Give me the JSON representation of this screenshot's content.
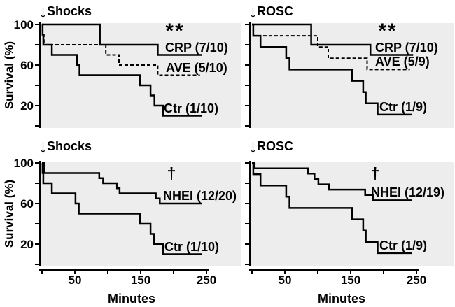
{
  "colors": {
    "curve": "#000000",
    "panel_bg": "#ededed",
    "text": "#000000",
    "page_bg": "#ffffff"
  },
  "arrow_icon": "↓",
  "y_axis": {
    "label": "Survival (%)",
    "tick_values": [
      100,
      80,
      60,
      40,
      20,
      0
    ],
    "labeled_ticks": [
      100,
      60,
      20
    ]
  },
  "x_axis": {
    "label": "Minutes",
    "tick_values": [
      0,
      50,
      100,
      150,
      200,
      250
    ],
    "labeled_ticks": [
      50,
      150,
      250
    ]
  },
  "chart_data": [
    {
      "position": "top-left",
      "type": "line",
      "step": true,
      "title": "Shocks",
      "significance": "**",
      "xlabel": "",
      "ylabel": "Survival (%)",
      "xlim": [
        0,
        250
      ],
      "ylim": [
        0,
        100
      ],
      "series": [
        {
          "name": "CRP",
          "label": "CRP (7/10)",
          "line_style": "solid",
          "points": [
            [
              0,
              100
            ],
            [
              88,
              100
            ],
            [
              88,
              80
            ],
            [
              176,
              80
            ],
            [
              176,
              70
            ],
            [
              243,
              70
            ]
          ]
        },
        {
          "name": "AVE",
          "label": "AVE (5/10)",
          "line_style": "dashed",
          "points": [
            [
              0,
              100
            ],
            [
              1,
              100
            ],
            [
              1,
              90
            ],
            [
              3,
              90
            ],
            [
              3,
              80
            ],
            [
              97,
              80
            ],
            [
              97,
              70
            ],
            [
              117,
              70
            ],
            [
              117,
              60
            ],
            [
              176,
              60
            ],
            [
              176,
              50
            ],
            [
              240,
              50
            ]
          ]
        },
        {
          "name": "Ctr",
          "label": "Ctr (1/10)",
          "line_style": "solid",
          "points": [
            [
              0,
              100
            ],
            [
              1,
              100
            ],
            [
              1,
              90
            ],
            [
              2,
              90
            ],
            [
              2,
              80
            ],
            [
              15,
              80
            ],
            [
              15,
              70
            ],
            [
              53,
              70
            ],
            [
              53,
              60
            ],
            [
              57,
              60
            ],
            [
              57,
              50
            ],
            [
              149,
              50
            ],
            [
              149,
              40
            ],
            [
              165,
              40
            ],
            [
              165,
              30
            ],
            [
              171,
              30
            ],
            [
              171,
              20
            ],
            [
              184,
              20
            ],
            [
              184,
              10
            ],
            [
              243,
              10
            ]
          ]
        }
      ]
    },
    {
      "position": "top-right",
      "type": "line",
      "step": true,
      "title": "ROSC",
      "significance": "**",
      "xlabel": "",
      "ylabel": "",
      "xlim": [
        0,
        250
      ],
      "ylim": [
        0,
        100
      ],
      "series": [
        {
          "name": "CRP",
          "label": "CRP (7/10)",
          "line_style": "solid",
          "points": [
            [
              0,
              100
            ],
            [
              90,
              100
            ],
            [
              90,
              80
            ],
            [
              180,
              80
            ],
            [
              180,
              70
            ],
            [
              245,
              70
            ]
          ]
        },
        {
          "name": "AVE",
          "label": "AVE (5/9)",
          "line_style": "dashed",
          "points": [
            [
              0,
              100
            ],
            [
              2,
              100
            ],
            [
              2,
              88.9
            ],
            [
              100,
              88.9
            ],
            [
              100,
              77.8
            ],
            [
              116,
              77.8
            ],
            [
              116,
              66.7
            ],
            [
              175,
              66.7
            ],
            [
              175,
              55.6
            ],
            [
              240,
              55.6
            ]
          ]
        },
        {
          "name": "Ctr",
          "label": "Ctr (1/9)",
          "line_style": "solid",
          "points": [
            [
              0,
              100
            ],
            [
              2,
              100
            ],
            [
              2,
              88.9
            ],
            [
              13,
              88.9
            ],
            [
              13,
              77.8
            ],
            [
              52,
              77.8
            ],
            [
              52,
              66.7
            ],
            [
              57,
              66.7
            ],
            [
              57,
              55.6
            ],
            [
              152,
              55.6
            ],
            [
              152,
              44.4
            ],
            [
              169,
              44.4
            ],
            [
              169,
              33.3
            ],
            [
              173,
              33.3
            ],
            [
              173,
              22.2
            ],
            [
              191,
              22.2
            ],
            [
              191,
              11.1
            ],
            [
              243,
              11.1
            ]
          ]
        }
      ]
    },
    {
      "position": "bottom-left",
      "type": "line",
      "step": true,
      "title": "Shocks",
      "significance": "†",
      "xlabel": "Minutes",
      "ylabel": "Survival (%)",
      "xlim": [
        0,
        250
      ],
      "ylim": [
        0,
        100
      ],
      "series": [
        {
          "name": "NHEI",
          "label": "NHEI (12/20)",
          "line_style": "solid",
          "points": [
            [
              0,
              100
            ],
            [
              3,
              100
            ],
            [
              3,
              90
            ],
            [
              87,
              90
            ],
            [
              87,
              85
            ],
            [
              93,
              85
            ],
            [
              93,
              80
            ],
            [
              114,
              80
            ],
            [
              114,
              75
            ],
            [
              118,
              75
            ],
            [
              118,
              70
            ],
            [
              173,
              70
            ],
            [
              173,
              65
            ],
            [
              179,
              65
            ],
            [
              179,
              60
            ],
            [
              243,
              60
            ]
          ]
        },
        {
          "name": "Ctr",
          "label": "Ctr (1/10)",
          "line_style": "solid",
          "points": [
            [
              0,
              100
            ],
            [
              1,
              100
            ],
            [
              1,
              90
            ],
            [
              2,
              90
            ],
            [
              2,
              80
            ],
            [
              15,
              80
            ],
            [
              15,
              70
            ],
            [
              51,
              70
            ],
            [
              51,
              60
            ],
            [
              56,
              60
            ],
            [
              56,
              50
            ],
            [
              149,
              50
            ],
            [
              149,
              40
            ],
            [
              165,
              40
            ],
            [
              165,
              30
            ],
            [
              170,
              30
            ],
            [
              170,
              20
            ],
            [
              184,
              20
            ],
            [
              184,
              10
            ],
            [
              243,
              10
            ]
          ]
        }
      ]
    },
    {
      "position": "bottom-right",
      "type": "line",
      "step": true,
      "title": "ROSC",
      "significance": "†",
      "xlabel": "Minutes",
      "ylabel": "",
      "xlim": [
        0,
        250
      ],
      "ylim": [
        0,
        100
      ],
      "series": [
        {
          "name": "NHEI",
          "label": "NHEI (12/19)",
          "line_style": "solid",
          "points": [
            [
              0,
              100
            ],
            [
              4,
              100
            ],
            [
              4,
              94.7
            ],
            [
              85,
              94.7
            ],
            [
              85,
              89.5
            ],
            [
              95,
              89.5
            ],
            [
              95,
              84.2
            ],
            [
              101,
              84.2
            ],
            [
              101,
              78.9
            ],
            [
              117,
              78.9
            ],
            [
              117,
              73.7
            ],
            [
              172,
              73.7
            ],
            [
              172,
              68.4
            ],
            [
              184,
              68.4
            ],
            [
              184,
              63.2
            ],
            [
              243,
              63.2
            ]
          ]
        },
        {
          "name": "Ctr",
          "label": "Ctr (1/9)",
          "line_style": "solid",
          "points": [
            [
              0,
              100
            ],
            [
              2,
              100
            ],
            [
              2,
              88.9
            ],
            [
              13,
              88.9
            ],
            [
              13,
              77.8
            ],
            [
              52,
              77.8
            ],
            [
              52,
              66.7
            ],
            [
              57,
              66.7
            ],
            [
              57,
              55.6
            ],
            [
              152,
              55.6
            ],
            [
              152,
              44.4
            ],
            [
              169,
              44.4
            ],
            [
              169,
              33.3
            ],
            [
              173,
              33.3
            ],
            [
              173,
              22.2
            ],
            [
              191,
              22.2
            ],
            [
              191,
              11.1
            ],
            [
              243,
              11.1
            ]
          ]
        }
      ]
    }
  ]
}
